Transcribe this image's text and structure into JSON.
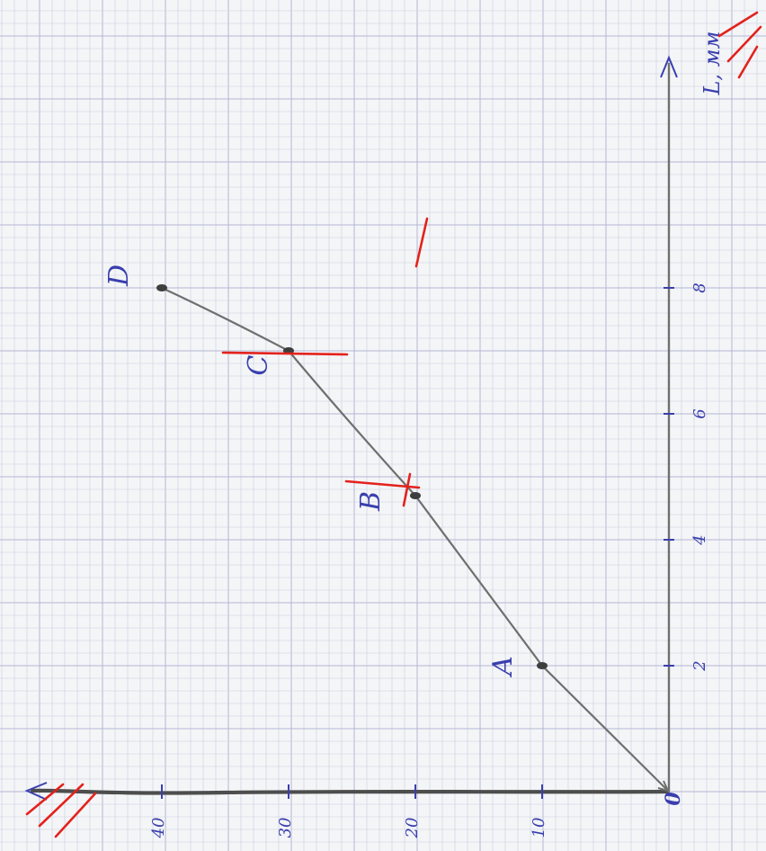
{
  "chart_data": {
    "type": "line",
    "x_axis_label": "L, мм",
    "origin_label": "0",
    "x_ticks": [
      2,
      4,
      6,
      8
    ],
    "y_ticks": [
      10,
      20,
      30,
      40
    ],
    "points": [
      {
        "label": "",
        "x": 0,
        "y": 0
      },
      {
        "label": "A",
        "x": 2,
        "y": 10
      },
      {
        "label": "B",
        "x": 4.7,
        "y": 20
      },
      {
        "label": "C",
        "x": 7,
        "y": 30
      },
      {
        "label": "D",
        "x": 8,
        "y": 40
      }
    ],
    "xlim": [
      0,
      9
    ],
    "ylim": [
      0,
      44
    ],
    "grid": true,
    "colors": {
      "pencil": "#6f6f6f",
      "ink": "#3a3fae",
      "red": "#e3221c",
      "grid": "#c9cde0",
      "grid_major": "#b3b8d4",
      "paper": "#f4f5f7"
    }
  }
}
